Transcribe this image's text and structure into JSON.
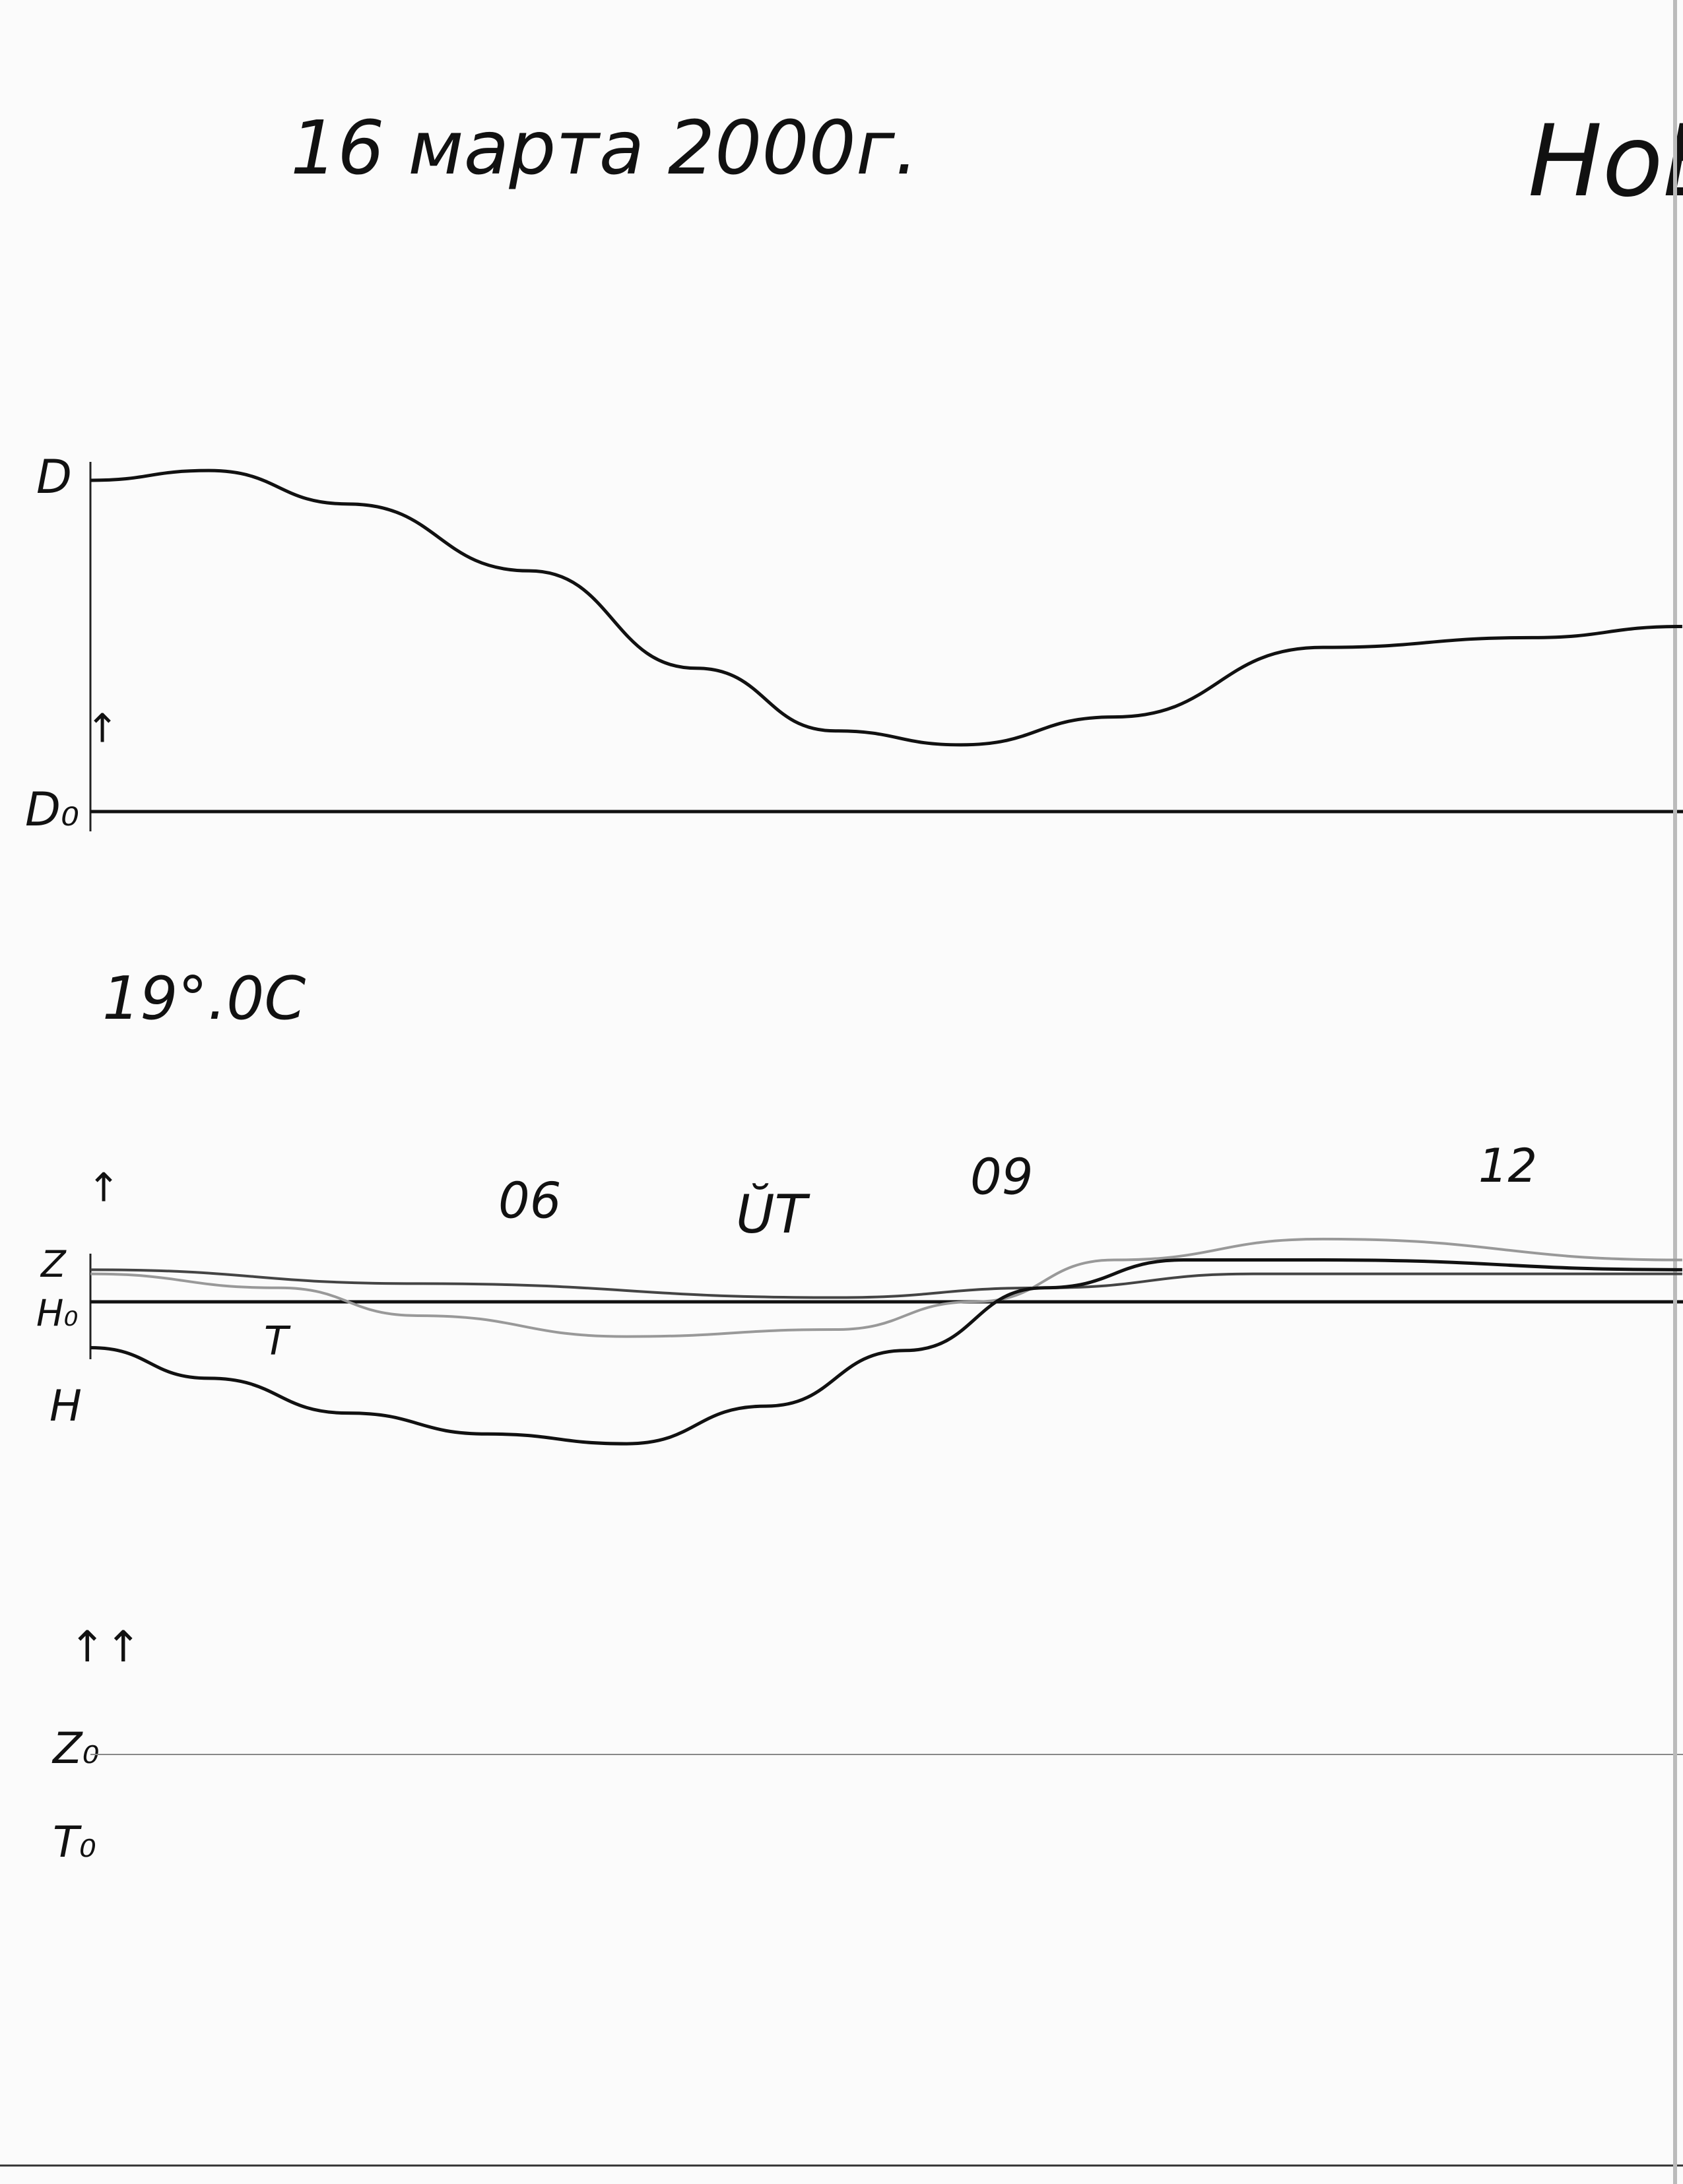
{
  "header": {
    "date": "16 марта 2000г.",
    "station": "НоВ"
  },
  "temperature": "19°.0C",
  "d_panel": {
    "trace_label": "D",
    "arrow": "↑",
    "baseline_label": "D₀"
  },
  "hz_panel": {
    "arrow": "↑",
    "z_label": "Z",
    "h0_label": "H₀",
    "h_label": "H",
    "t_label": "T",
    "hour_marks": [
      "06",
      "09",
      "12"
    ],
    "time_unit": "ŬT"
  },
  "base_panel": {
    "arrow": "↑↑",
    "z0_label": "Z₀",
    "t0_label": "T₀"
  }
}
